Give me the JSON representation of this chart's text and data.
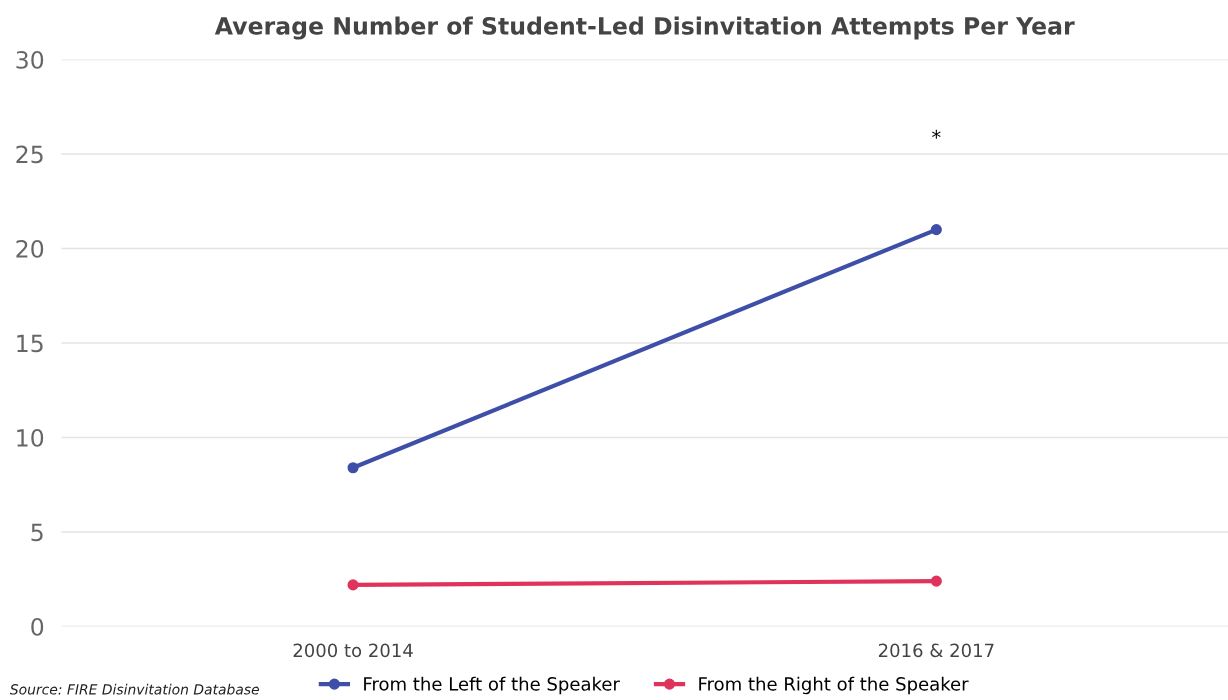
{
  "chart_data": {
    "type": "line",
    "title": "Average Number of Student-Led Disinvitation Attempts Per Year",
    "categories": [
      "2000 to 2014",
      "2016 & 2017"
    ],
    "series": [
      {
        "name": "From the Left of the Speaker",
        "color": "#3f4fa8",
        "values": [
          8.4,
          21.0
        ]
      },
      {
        "name": "From the Right of the Speaker",
        "color": "#e0335c",
        "values": [
          2.2,
          2.4
        ]
      }
    ],
    "ylim": [
      0,
      30
    ],
    "yticks": [
      0,
      5,
      10,
      15,
      20,
      25,
      30
    ],
    "grid": "y",
    "legend": "bottom",
    "marker": "circle",
    "line_style": "solid",
    "annotations": [
      "*",
      "Source: FIRE Disinvitation Database"
    ]
  }
}
